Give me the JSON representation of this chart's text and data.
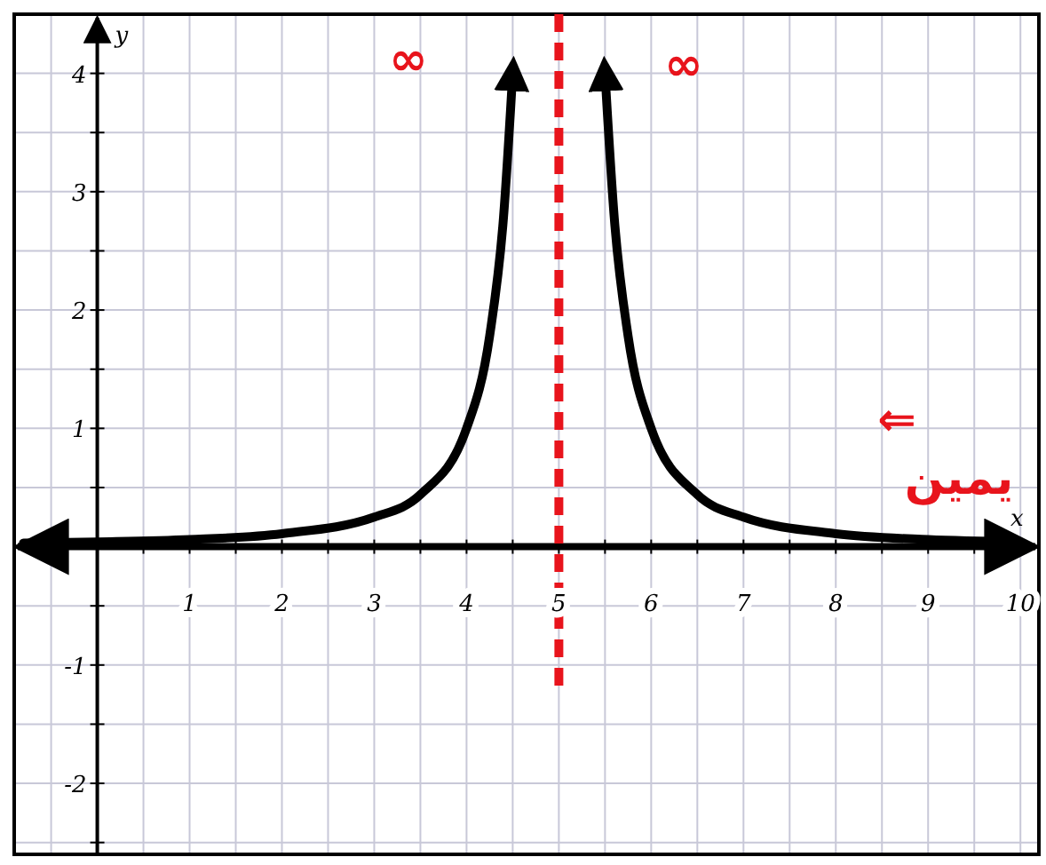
{
  "chart_data": {
    "type": "line",
    "xlabel": "x",
    "ylabel": "y",
    "xlim": [
      -0.9,
      10.2
    ],
    "ylim": [
      -2.6,
      4.5
    ],
    "xticks": [
      {
        "value": -0.5,
        "label": null
      },
      {
        "value": 0,
        "label": null
      },
      {
        "value": 0.5,
        "label": null
      },
      1,
      {
        "value": 1.5,
        "label": null
      },
      2,
      {
        "value": 2.5,
        "label": null
      },
      3,
      {
        "value": 3.5,
        "label": null
      },
      4,
      {
        "value": 4.5,
        "label": null
      },
      5,
      {
        "value": 5.5,
        "label": null
      },
      6,
      {
        "value": 6.5,
        "label": null
      },
      7,
      {
        "value": 7.5,
        "label": null
      },
      8,
      {
        "value": 8.5,
        "label": null
      },
      9,
      {
        "value": 9.5,
        "label": null
      },
      10
    ],
    "yticks": [
      {
        "value": -2.5,
        "label": null
      },
      -2,
      {
        "value": -1.5,
        "label": null
      },
      -1,
      {
        "value": -0.5,
        "label": null
      },
      {
        "value": 0,
        "label": null
      },
      {
        "value": 0.5,
        "label": null
      },
      1,
      {
        "value": 1.5,
        "label": null
      },
      2,
      {
        "value": 2.5,
        "label": null
      },
      3,
      {
        "value": 3.5,
        "label": null
      },
      4
    ],
    "grid": true,
    "line_style": "solid",
    "series": [
      {
        "color": "#000000",
        "x": [
          -0.8,
          0,
          1,
          2,
          3,
          3.5,
          4,
          4.25,
          4.4,
          4.5
        ],
        "values": [
          0.03,
          0.04,
          0.06,
          0.11,
          0.25,
          0.44,
          1,
          1.78,
          2.78,
          4
        ]
      },
      {
        "color": "#000000",
        "x": [
          5.5,
          5.6,
          5.75,
          6,
          6.5,
          7,
          8,
          9,
          10
        ],
        "values": [
          4,
          2.78,
          1.78,
          1,
          0.44,
          0.25,
          0.11,
          0.06,
          0.04
        ]
      }
    ],
    "ref_lines": [
      {
        "axis": "x",
        "value": 5,
        "color": "#e8141c",
        "line_style": "dashed"
      }
    ],
    "annotations": [
      "∞",
      "∞",
      "⇐",
      "يمين"
    ]
  }
}
